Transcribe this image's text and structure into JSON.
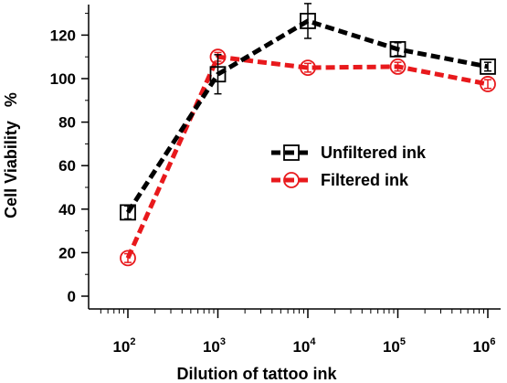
{
  "chart_data": {
    "type": "line",
    "title": "",
    "xlabel": "Dilution of tattoo ink",
    "ylabel": "Cell Viability   %",
    "xscale": "log",
    "xlim": [
      50,
      1000000
    ],
    "ylim": [
      -5,
      135
    ],
    "grid": false,
    "legend_position": "center-right",
    "x": [
      100,
      1000,
      10000,
      100000,
      1000000
    ],
    "x_tick_labels": [
      {
        "base": "10",
        "exp": "2"
      },
      {
        "base": "10",
        "exp": "3"
      },
      {
        "base": "10",
        "exp": "4"
      },
      {
        "base": "10",
        "exp": "5"
      },
      {
        "base": "10",
        "exp": "6"
      }
    ],
    "y_ticks": [
      0,
      20,
      40,
      60,
      80,
      100,
      120
    ],
    "series": [
      {
        "name": "Unfiltered ink",
        "color": "#000000",
        "marker": "square",
        "values": [
          38.5,
          102,
          126.5,
          113.5,
          105.5
        ],
        "errors": [
          3,
          9,
          8,
          3,
          2
        ]
      },
      {
        "name": "Filtered ink",
        "color": "#e8191c",
        "marker": "circle",
        "values": [
          17.5,
          110,
          105,
          105.5,
          97.5
        ],
        "errors": [
          2,
          2,
          2,
          2,
          2
        ]
      }
    ]
  }
}
